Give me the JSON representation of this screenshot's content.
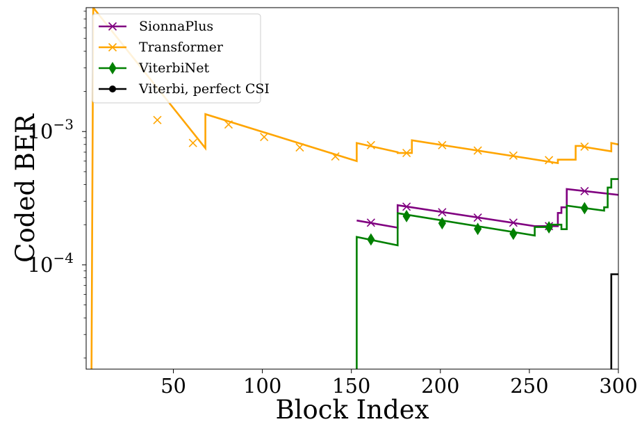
{
  "chart_data": {
    "type": "line",
    "title": "",
    "xlabel": "Block Index",
    "ylabel": "Coded BER",
    "xlim": [
      1,
      300
    ],
    "ylim": [
      1.65e-05,
      0.0085
    ],
    "yscale": "log",
    "grid": false,
    "legend_position": "upper-left",
    "x_ticks": [
      50,
      100,
      150,
      200,
      250,
      300
    ],
    "x_tick_labels": [
      "50",
      "100",
      "150",
      "200",
      "250",
      "300"
    ],
    "y_ticks": [
      {
        "value": 0.001,
        "base": "10",
        "exp": "−3"
      },
      {
        "value": 0.0001,
        "base": "10",
        "exp": "−4"
      }
    ],
    "series": [
      {
        "name": "SionnaPlus",
        "color": "#800080",
        "marker": "x",
        "points": [
          [
            153,
            0.000215
          ],
          [
            176,
            0.00019
          ],
          [
            176,
            0.00028
          ],
          [
            253,
            0.000195
          ],
          [
            266,
            0.000195
          ],
          [
            266,
            0.000245
          ],
          [
            268,
            0.000245
          ],
          [
            268,
            0.00027
          ],
          [
            271,
            0.00027
          ],
          [
            271,
            0.00037
          ],
          [
            300,
            0.000335
          ]
        ],
        "marker_points": [
          [
            161,
            0.000207
          ],
          [
            181,
            0.000273
          ],
          [
            201,
            0.000248
          ],
          [
            221,
            0.000226
          ],
          [
            241,
            0.000207
          ],
          [
            261,
            0.000195
          ],
          [
            281,
            0.000357
          ]
        ]
      },
      {
        "name": "Transformer",
        "color": "#ffa500",
        "marker": "x",
        "points": [
          [
            4,
            1.65e-05
          ],
          [
            5,
            0.0085
          ],
          [
            68,
            0.00075
          ],
          [
            68,
            0.00135
          ],
          [
            153,
            0.0006
          ],
          [
            153,
            0.00082
          ],
          [
            176,
            0.0007
          ],
          [
            176,
            0.00069
          ],
          [
            184,
            0.00069
          ],
          [
            184,
            0.00086
          ],
          [
            266,
            0.00058
          ],
          [
            266,
            0.000615
          ],
          [
            276,
            0.000615
          ],
          [
            276,
            0.00078
          ],
          [
            280,
            0.00078
          ],
          [
            280,
            0.00077
          ],
          [
            296,
            0.00071
          ],
          [
            296,
            0.00082
          ],
          [
            300,
            0.0008
          ]
        ],
        "marker_points": [
          [
            41,
            0.00122
          ],
          [
            61,
            0.00082
          ],
          [
            81,
            0.00113
          ],
          [
            101,
            0.00091
          ],
          [
            121,
            0.00076
          ],
          [
            141,
            0.00065
          ],
          [
            161,
            0.00079
          ],
          [
            181,
            0.00069
          ],
          [
            201,
            0.00079
          ],
          [
            221,
            0.00072
          ],
          [
            241,
            0.00066
          ],
          [
            261,
            0.00061
          ],
          [
            281,
            0.00077
          ]
        ]
      },
      {
        "name": "ViterbiNet",
        "color": "#008000",
        "marker": "d",
        "points": [
          [
            153,
            1.65e-05
          ],
          [
            153,
            0.000162
          ],
          [
            176,
            0.00014
          ],
          [
            176,
            0.000244
          ],
          [
            253,
            0.000166
          ],
          [
            253,
            0.000192
          ],
          [
            262,
            0.000192
          ],
          [
            262,
            0.0002
          ],
          [
            268,
            0.0002
          ],
          [
            268,
            0.000185
          ],
          [
            271,
            0.000185
          ],
          [
            271,
            0.000278
          ],
          [
            292,
            0.000255
          ],
          [
            292,
            0.00027
          ],
          [
            294,
            0.00027
          ],
          [
            294,
            0.00038
          ],
          [
            296,
            0.00038
          ],
          [
            296,
            0.00044
          ],
          [
            300,
            0.00044
          ]
        ],
        "marker_points": [
          [
            161,
            0.000155
          ],
          [
            181,
            0.000232
          ],
          [
            201,
            0.000205
          ],
          [
            221,
            0.000186
          ],
          [
            241,
            0.000171
          ],
          [
            261,
            0.000191
          ],
          [
            281,
            0.000266
          ]
        ]
      },
      {
        "name": "Viterbi, perfect CSI",
        "color": "#000000",
        "marker": "o",
        "points": [
          [
            296,
            1.65e-05
          ],
          [
            296,
            8.5e-05
          ],
          [
            300,
            8.5e-05
          ]
        ],
        "marker_points": []
      }
    ]
  }
}
